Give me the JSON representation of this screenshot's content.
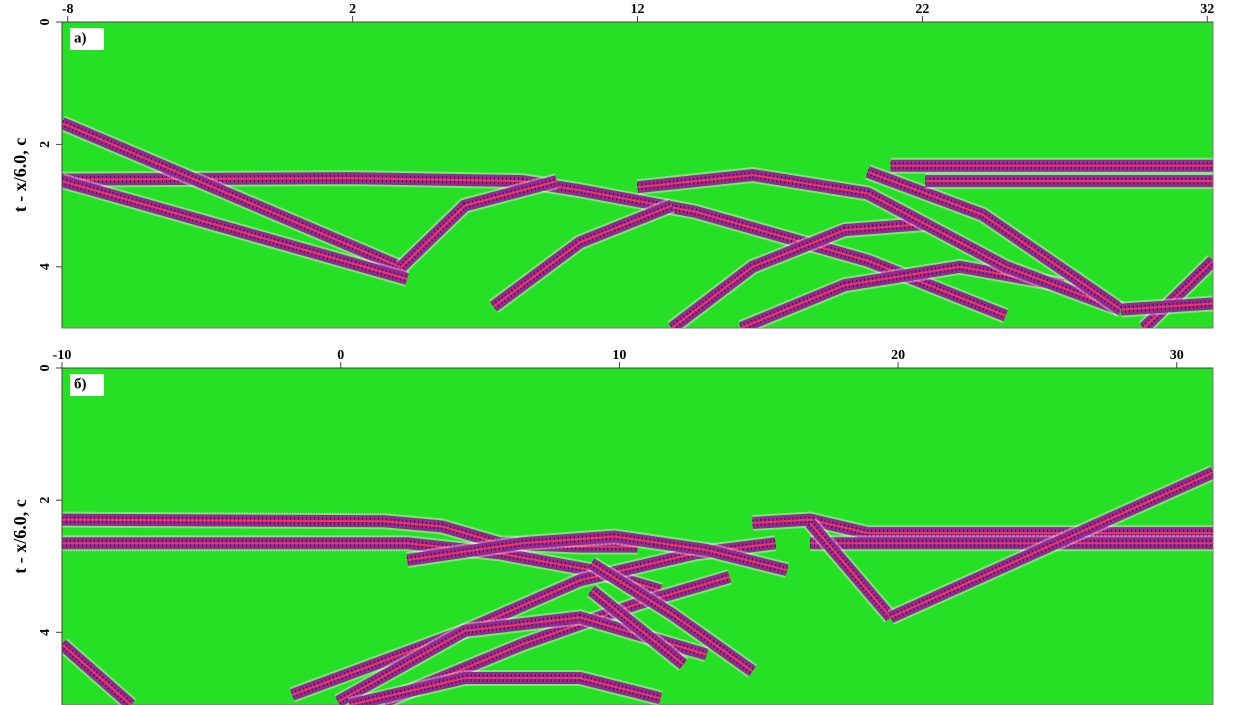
{
  "chart_data": [
    {
      "type": "seismogram",
      "panel_label": "а)",
      "ylabel": "t - x/6.0, c",
      "xlim": [
        -8.2,
        32.2
      ],
      "xticks": [
        -8,
        2,
        12,
        22,
        32
      ],
      "ylim": [
        0,
        5
      ],
      "yticks": [
        0,
        2,
        4
      ]
    },
    {
      "type": "seismogram",
      "panel_label": "б)",
      "ylabel": "t - x/6.0, c",
      "xlim": [
        -10,
        31.3
      ],
      "xticks": [
        -10,
        0,
        10,
        20,
        30
      ],
      "ylim": [
        0,
        5.1
      ],
      "yticks": [
        0,
        2,
        4
      ]
    }
  ]
}
